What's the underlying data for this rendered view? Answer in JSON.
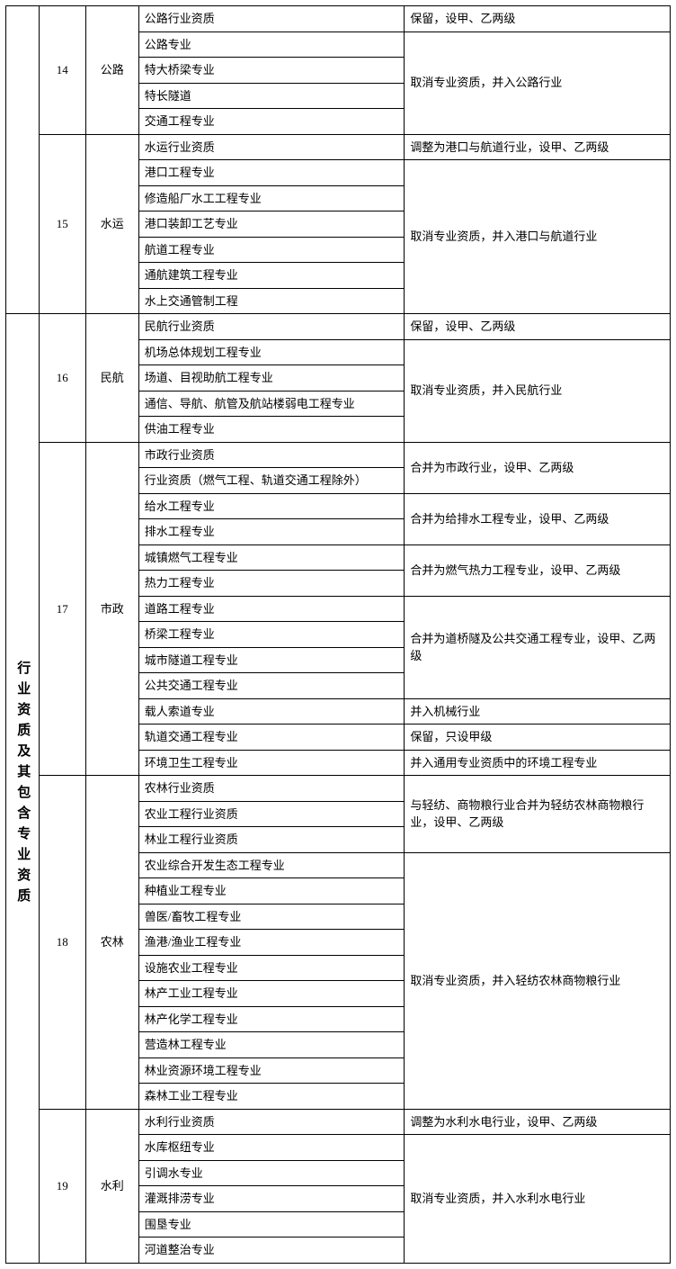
{
  "category_label": "行业资质及其包含专业资质",
  "groups": [
    {
      "num": "14",
      "industry": "公路",
      "rows": [
        {
          "spec": "公路行业资质",
          "note": "保留，设甲、乙两级",
          "note_span": 1
        },
        {
          "spec": "公路专业",
          "note": "取消专业资质，并入公路行业",
          "note_span": 4
        },
        {
          "spec": "特大桥梁专业"
        },
        {
          "spec": "特长隧道"
        },
        {
          "spec": "交通工程专业"
        }
      ]
    },
    {
      "num": "15",
      "industry": "水运",
      "rows": [
        {
          "spec": "水运行业资质",
          "note": "调整为港口与航道行业，设甲、乙两级",
          "note_span": 1
        },
        {
          "spec": "港口工程专业",
          "note": "取消专业资质，并入港口与航道行业",
          "note_span": 6
        },
        {
          "spec": "修造船厂水工工程专业"
        },
        {
          "spec": "港口装卸工艺专业"
        },
        {
          "spec": "航道工程专业"
        },
        {
          "spec": "通航建筑工程专业"
        },
        {
          "spec": "水上交通管制工程"
        }
      ]
    },
    {
      "num": "16",
      "industry": "民航",
      "rows": [
        {
          "spec": "民航行业资质",
          "note": "保留，设甲、乙两级",
          "note_span": 1
        },
        {
          "spec": "机场总体规划工程专业",
          "note": "取消专业资质，并入民航行业",
          "note_span": 4
        },
        {
          "spec": "场道、目视助航工程专业"
        },
        {
          "spec": "通信、导航、航管及航站楼弱电工程专业"
        },
        {
          "spec": "供油工程专业"
        }
      ]
    },
    {
      "num": "17",
      "industry": "市政",
      "rows": [
        {
          "spec": "市政行业资质",
          "note": "合并为市政行业，设甲、乙两级",
          "note_span": 2
        },
        {
          "spec": "行业资质（燃气工程、轨道交通工程除外）"
        },
        {
          "spec": "给水工程专业",
          "note": "合并为给排水工程专业，设甲、乙两级",
          "note_span": 2
        },
        {
          "spec": "排水工程专业"
        },
        {
          "spec": "城镇燃气工程专业",
          "note": "合并为燃气热力工程专业，设甲、乙两级",
          "note_span": 2
        },
        {
          "spec": "热力工程专业"
        },
        {
          "spec": "道路工程专业",
          "note": "合并为道桥隧及公共交通工程专业，设甲、乙两级",
          "note_span": 4
        },
        {
          "spec": "桥梁工程专业"
        },
        {
          "spec": "城市隧道工程专业"
        },
        {
          "spec": "公共交通工程专业"
        },
        {
          "spec": "载人索道专业",
          "note": "并入机械行业",
          "note_span": 1
        },
        {
          "spec": "轨道交通工程专业",
          "note": "保留，只设甲级",
          "note_span": 1
        },
        {
          "spec": "环境卫生工程专业",
          "note": "并入通用专业资质中的环境工程专业",
          "note_span": 1
        }
      ]
    },
    {
      "num": "18",
      "industry": "农林",
      "rows": [
        {
          "spec": "农林行业资质",
          "note": "与轻纺、商物粮行业合并为轻纺农林商物粮行业，设甲、乙两级",
          "note_span": 3
        },
        {
          "spec": "农业工程行业资质"
        },
        {
          "spec": "林业工程行业资质"
        },
        {
          "spec": "农业综合开发生态工程专业",
          "note": "取消专业资质，并入轻纺农林商物粮行业",
          "note_span": 10
        },
        {
          "spec": "种植业工程专业"
        },
        {
          "spec": "兽医/畜牧工程专业"
        },
        {
          "spec": "渔港/渔业工程专业"
        },
        {
          "spec": "设施农业工程专业"
        },
        {
          "spec": "林产工业工程专业"
        },
        {
          "spec": "林产化学工程专业"
        },
        {
          "spec": "营造林工程专业"
        },
        {
          "spec": "林业资源环境工程专业"
        },
        {
          "spec": "森林工业工程专业"
        }
      ]
    },
    {
      "num": "19",
      "industry": "水利",
      "rows": [
        {
          "spec": "水利行业资质",
          "note": "调整为水利水电行业，设甲、乙两级",
          "note_span": 1
        },
        {
          "spec": "水库枢纽专业",
          "note": "取消专业资质，并入水利水电行业",
          "note_span": 5
        },
        {
          "spec": "引调水专业"
        },
        {
          "spec": "灌溉排涝专业"
        },
        {
          "spec": "围垦专业"
        },
        {
          "spec": "河道整治专业"
        }
      ]
    }
  ]
}
